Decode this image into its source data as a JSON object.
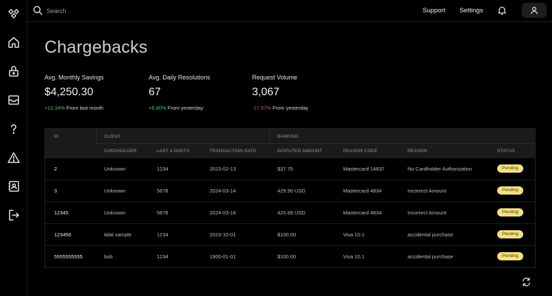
{
  "topbar": {
    "search_placeholder": "Search",
    "support_label": "Support",
    "settings_label": "Settings"
  },
  "sidebar": {
    "icons": [
      "home-icon",
      "lock-icon",
      "inbox-icon",
      "question-icon",
      "warning-icon",
      "contact-icon",
      "logout-icon"
    ]
  },
  "page": {
    "title": "Chargebacks"
  },
  "stats": [
    {
      "label": "Avg. Monthly Savings",
      "value": "$4,250.30",
      "change": "+12.34%",
      "change_suffix": "From last month",
      "trend": "up"
    },
    {
      "label": "Avg. Daily Resolutions",
      "value": "67",
      "change": "+6.40%",
      "change_suffix": "From yesterday",
      "trend": "up"
    },
    {
      "label": "Request Volume",
      "value": "3,067",
      "change": "-17.57%",
      "change_suffix": "From yesterday",
      "trend": "down"
    }
  ],
  "table": {
    "groups": {
      "id": "ID",
      "client": "CLIENT",
      "banking": "BANKING"
    },
    "columns": {
      "cardholder": "CARDHOLDER",
      "last4": "LAST 4 DIGITS",
      "date": "TRANSACTION DATE",
      "amount": "DISPUTED AMOUNT",
      "reason_code": "REASON CODE",
      "reason": "REASON",
      "status": "STATUS"
    },
    "rows": [
      {
        "id": "2",
        "cardholder": "Unknown",
        "last4": "1234",
        "date": "2023-02-13",
        "amount": "$37.75",
        "reason_code": "Mastercard 14837",
        "reason": "No Cardholder Authorization",
        "status": "Pending"
      },
      {
        "id": "3",
        "cardholder": "Unknown",
        "last4": "5678",
        "date": "2024-03-14",
        "amount": "429.90 USD",
        "reason_code": "Mastercard 4834",
        "reason": "Incorrect Amount",
        "status": "Pending"
      },
      {
        "id": "12345",
        "cardholder": "Unknown",
        "last4": "5678",
        "date": "2024-03-16",
        "amount": "420.69 USD",
        "reason_code": "Mastercard 4834",
        "reason": "Incorrect Amount",
        "status": "Pending"
      },
      {
        "id": "123456",
        "cardholder": "tidal sample",
        "last4": "1234",
        "date": "2023-10-01",
        "amount": "$100.00",
        "reason_code": "Visa 10.1",
        "reason": "accidental purchase",
        "status": "Pending"
      },
      {
        "id": "5555555555",
        "cardholder": "bob",
        "last4": "1234",
        "date": "1900-01-01",
        "amount": "$100.00",
        "reason_code": "Visa 10.1",
        "reason": "accidental purchase",
        "status": "Pending"
      }
    ]
  },
  "colors": {
    "positive": "#3ed06b",
    "negative": "#ef4d4d",
    "badge_bg": "#f3e27a"
  }
}
